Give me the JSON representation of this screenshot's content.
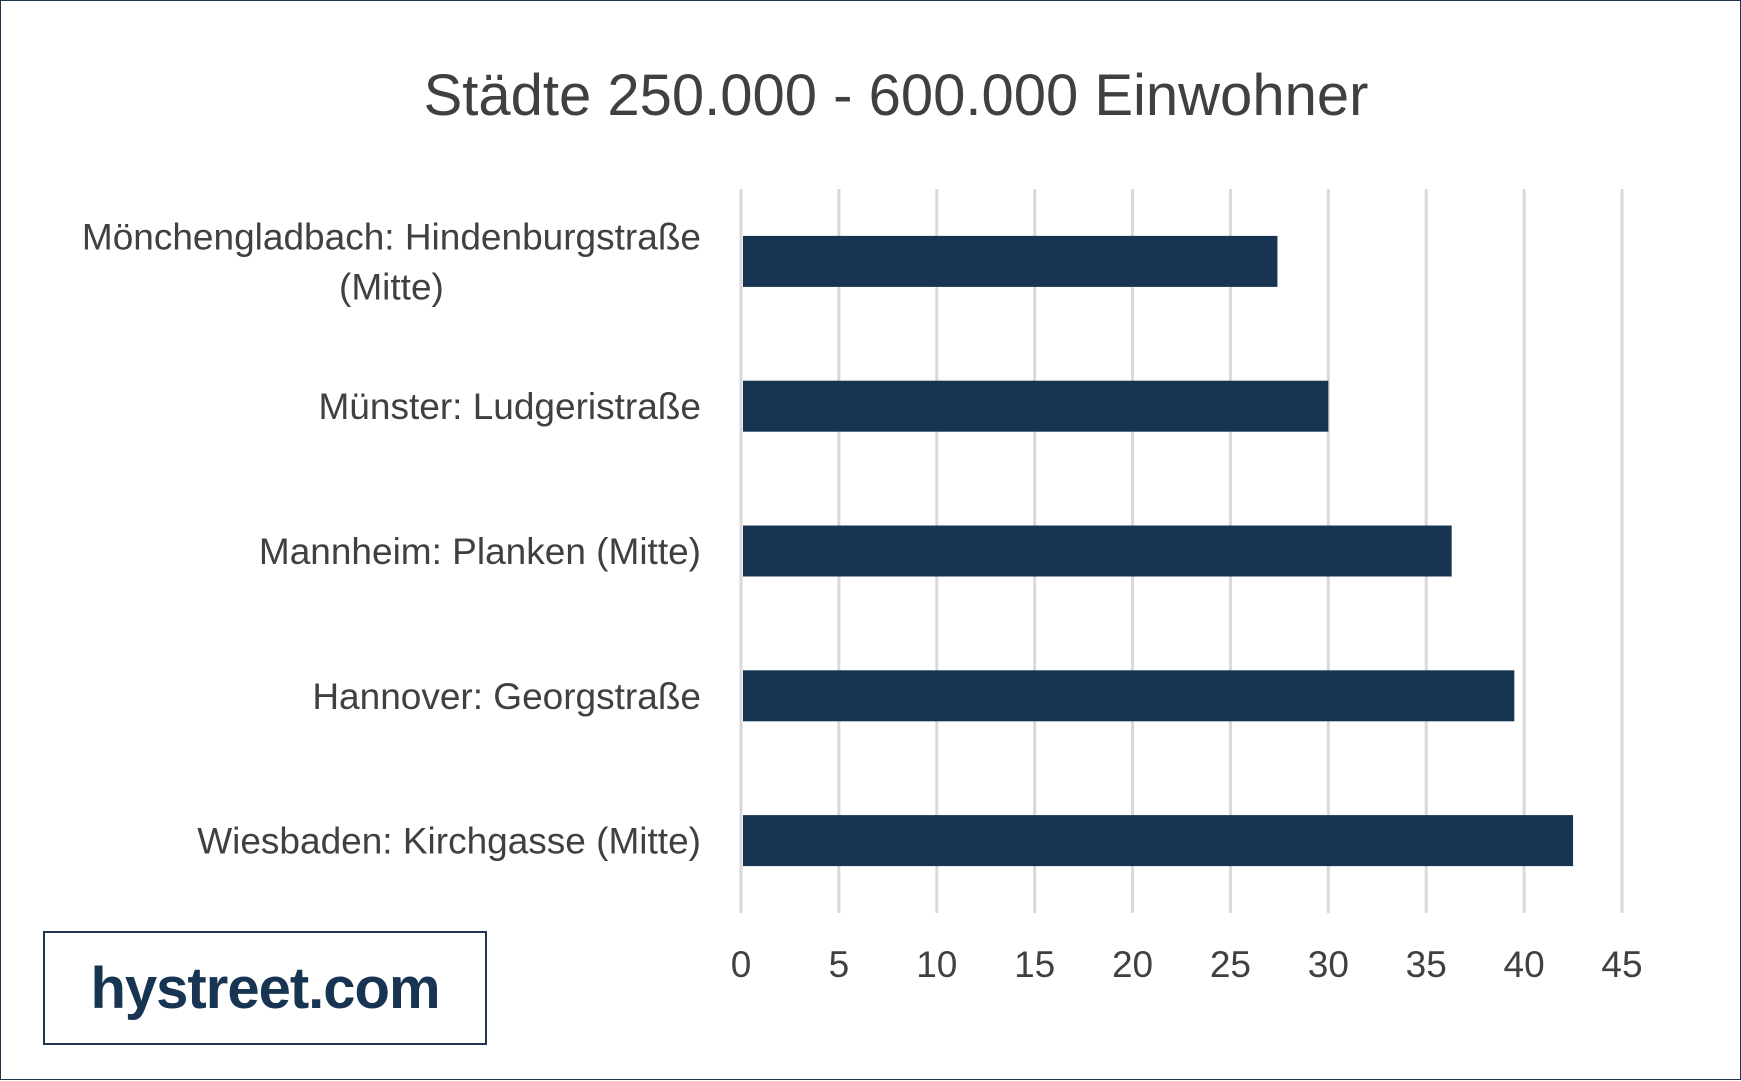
{
  "logo": {
    "text": "hystreet.com"
  },
  "colors": {
    "bar": "#173553",
    "grid": "#d9d9d9",
    "text": "#404040",
    "border": "#1f3550"
  },
  "chart_data": {
    "type": "bar",
    "orientation": "horizontal",
    "title": "Städte 250.000 - 600.000 Einwohner",
    "categories": [
      [
        "Mönchengladbach: Hindenburgstraße",
        "(Mitte)"
      ],
      [
        "Münster: Ludgeristraße"
      ],
      [
        "Mannheim: Planken (Mitte)"
      ],
      [
        "Hannover: Georgstraße"
      ],
      [
        "Wiesbaden: Kirchgasse (Mitte)"
      ]
    ],
    "values": [
      27.4,
      30.0,
      36.3,
      39.5,
      42.5
    ],
    "xlim": [
      0,
      45
    ],
    "xticks": [
      "0",
      "5",
      "10",
      "15",
      "20",
      "25",
      "30",
      "35",
      "40",
      "45"
    ],
    "grid": "vertical",
    "legend": "none"
  }
}
